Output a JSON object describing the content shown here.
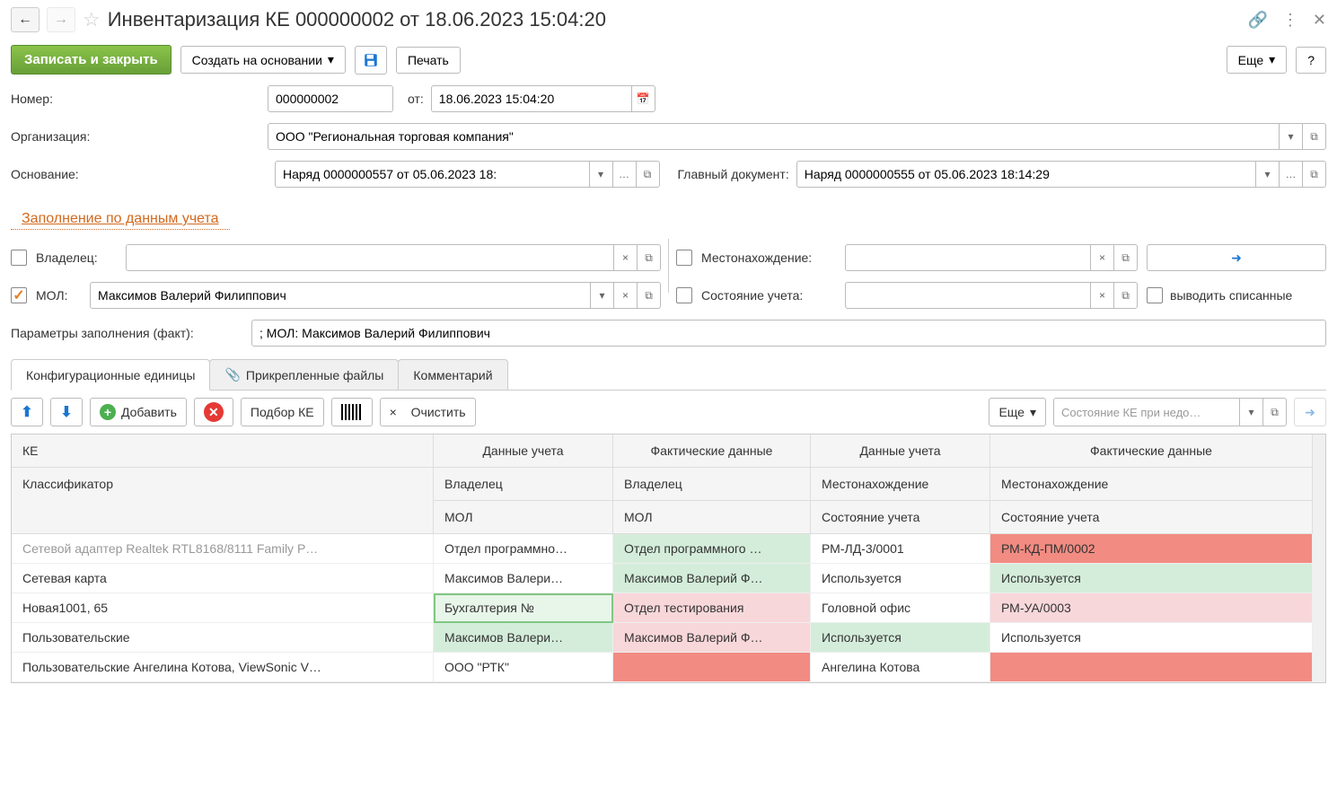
{
  "header": {
    "title": "Инвентаризация КЕ 000000002 от 18.06.2023 15:04:20"
  },
  "toolbar": {
    "save_close": "Записать и закрыть",
    "create_based": "Создать на основании",
    "print": "Печать",
    "more": "Еще",
    "help": "?"
  },
  "form": {
    "number_label": "Номер:",
    "number_value": "000000002",
    "from_label": "от:",
    "from_value": "18.06.2023 15:04:20",
    "org_label": "Организация:",
    "org_value": "ООО \"Региональная торговая компания\"",
    "basis_label": "Основание:",
    "basis_value": "Наряд 0000000557 от 05.06.2023 18:",
    "main_doc_label": "Главный документ:",
    "main_doc_value": "Наряд 0000000555 от 05.06.2023 18:14:29",
    "fill_link": "Заполнение по данным учета",
    "owner_label": "Владелец:",
    "location_label": "Местонахождение:",
    "mol_label": "МОЛ:",
    "mol_value": "Максимов Валерий Филиппович",
    "state_label": "Состояние учета:",
    "show_written_off": "выводить списанные",
    "fill_params_label": "Параметры заполнения (факт):",
    "fill_params_value": "; МОЛ: Максимов Валерий Филиппович"
  },
  "tabs": {
    "ci": "Конфигурационные единицы",
    "files": "Прикрепленные файлы",
    "comment": "Комментарий"
  },
  "table_toolbar": {
    "add": "Добавить",
    "select_ci": "Подбор КЕ",
    "clear": "Очистить",
    "more": "Еще",
    "state_placeholder": "Состояние КЕ при недо…"
  },
  "table": {
    "headers": {
      "ke": "КЕ",
      "classifier": "Классификатор",
      "data_acc": "Данные учета",
      "data_fact": "Фактические данные",
      "owner": "Владелец",
      "mol": "МОЛ",
      "location": "Местонахождение",
      "state": "Состояние учета"
    },
    "rows": [
      {
        "r1": [
          {
            "text": "Сетевой адаптер Realtek RTL8168/8111 Family P…",
            "cls": "muted"
          },
          {
            "text": "Отдел программно…",
            "cls": ""
          },
          {
            "text": "Отдел программного …",
            "cls": "green-light"
          },
          {
            "text": "РМ-ЛД-3/0001",
            "cls": ""
          },
          {
            "text": "РМ-КД-ПМ/0002",
            "cls": "red-strong"
          }
        ],
        "r2": [
          {
            "text": "Сетевая карта",
            "cls": ""
          },
          {
            "text": "Максимов Валери…",
            "cls": ""
          },
          {
            "text": "Максимов Валерий Ф…",
            "cls": "green-light"
          },
          {
            "text": "Используется",
            "cls": ""
          },
          {
            "text": "Используется",
            "cls": "green-light"
          }
        ]
      },
      {
        "r1": [
          {
            "text": "Новая1001, 65",
            "cls": ""
          },
          {
            "text": "Бухгалтерия №",
            "cls": "green-border"
          },
          {
            "text": "Отдел тестирования",
            "cls": "red-light"
          },
          {
            "text": "Головной офис",
            "cls": ""
          },
          {
            "text": "РМ-УА/0003",
            "cls": "red-light"
          }
        ],
        "r2": [
          {
            "text": "Пользовательские",
            "cls": ""
          },
          {
            "text": "Максимов Валери…",
            "cls": "green-light"
          },
          {
            "text": "Максимов Валерий Ф…",
            "cls": "red-light"
          },
          {
            "text": "Используется",
            "cls": "green-light"
          },
          {
            "text": "Используется",
            "cls": ""
          }
        ]
      },
      {
        "r1": [
          {
            "text": "Пользовательские Ангелина Котова, ViewSonic V…",
            "cls": ""
          },
          {
            "text": "ООО \"РТК\"",
            "cls": ""
          },
          {
            "text": "",
            "cls": "red-strong"
          },
          {
            "text": "Ангелина Котова",
            "cls": ""
          },
          {
            "text": "",
            "cls": "red-strong"
          }
        ]
      }
    ]
  },
  "colors": {
    "primary_green": "#689f38",
    "link_orange": "#d2691e",
    "cell_green": "#d4edda",
    "cell_red": "#f28b82",
    "cell_red_light": "#f8d7da"
  }
}
